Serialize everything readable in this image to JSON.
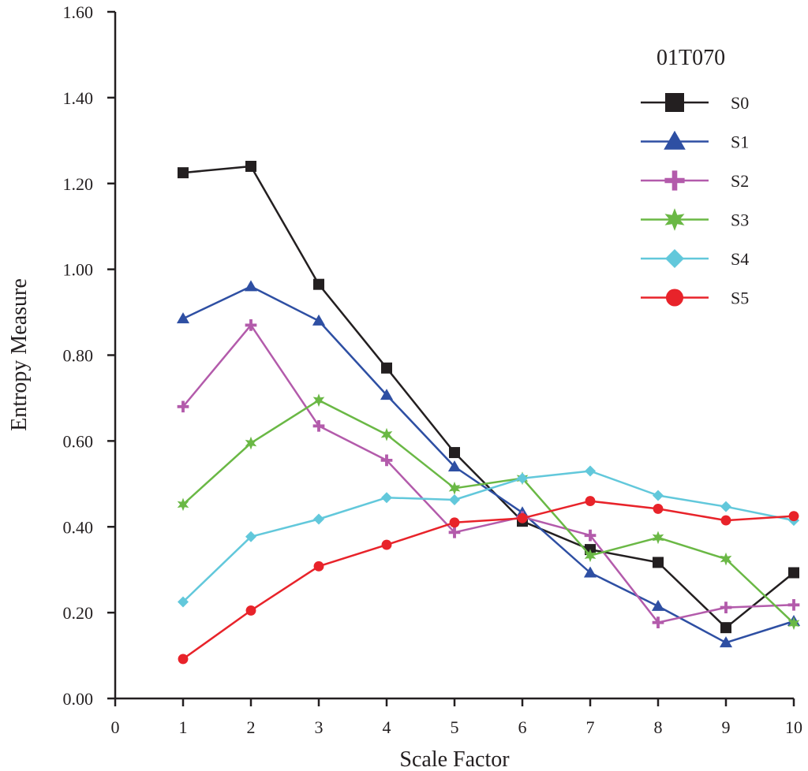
{
  "chart_data": {
    "type": "line",
    "title": "",
    "legend_title": "01T070",
    "xlabel": "Scale Factor",
    "ylabel": "Entropy Measure",
    "xlim": [
      0,
      10
    ],
    "ylim": [
      0,
      1.6
    ],
    "x_ticks": [
      "0",
      "1",
      "2",
      "3",
      "4",
      "5",
      "6",
      "7",
      "8",
      "9",
      "10"
    ],
    "y_ticks": [
      "0.00",
      "0.20",
      "0.40",
      "0.60",
      "0.80",
      "1.00",
      "1.20",
      "1.40",
      "1.60"
    ],
    "x": [
      1,
      2,
      3,
      4,
      5,
      6,
      7,
      8,
      9,
      10
    ],
    "legend_position": "top-right",
    "series": [
      {
        "name": "S0",
        "color": "#231f20",
        "marker": "square",
        "values": [
          1.225,
          1.24,
          0.965,
          0.77,
          0.573,
          0.413,
          0.347,
          0.317,
          0.165,
          0.293
        ]
      },
      {
        "name": "S1",
        "color": "#2e4fa3",
        "marker": "triangle",
        "values": [
          0.885,
          0.96,
          0.88,
          0.707,
          0.54,
          0.433,
          0.293,
          0.215,
          0.13,
          0.18
        ]
      },
      {
        "name": "S2",
        "color": "#b35bab",
        "marker": "plus",
        "values": [
          0.68,
          0.87,
          0.635,
          0.555,
          0.387,
          0.423,
          0.38,
          0.177,
          0.212,
          0.218
        ]
      },
      {
        "name": "S3",
        "color": "#6ab845",
        "marker": "star",
        "values": [
          0.452,
          0.595,
          0.695,
          0.615,
          0.49,
          0.513,
          0.333,
          0.375,
          0.325,
          0.175
        ]
      },
      {
        "name": "S4",
        "color": "#62c8db",
        "marker": "diamond",
        "values": [
          0.225,
          0.377,
          0.418,
          0.468,
          0.463,
          0.513,
          0.53,
          0.473,
          0.447,
          0.415
        ]
      },
      {
        "name": "S5",
        "color": "#e8232a",
        "marker": "circle",
        "values": [
          0.092,
          0.205,
          0.308,
          0.358,
          0.41,
          0.42,
          0.46,
          0.442,
          0.415,
          0.425
        ]
      }
    ]
  }
}
